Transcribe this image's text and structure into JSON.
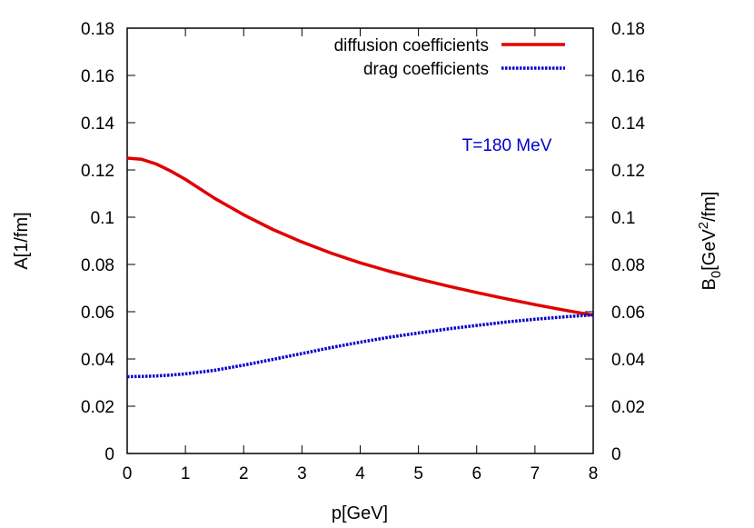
{
  "chart_data": {
    "type": "line",
    "xlabel": "p[GeV]",
    "ylabel": "A[1/fm]",
    "y2label": {
      "base": "B",
      "sub": "0",
      "mid": "[GeV",
      "sup": "2",
      "end": "/fm]"
    },
    "xlim": [
      0,
      8
    ],
    "ylim": [
      0,
      0.18
    ],
    "y2lim": [
      0,
      0.18
    ],
    "xticks": [
      0,
      1,
      2,
      3,
      4,
      5,
      6,
      7,
      8
    ],
    "yticks": [
      0,
      0.02,
      0.04,
      0.06,
      0.08,
      0.1,
      0.12,
      0.14,
      0.16,
      0.18
    ],
    "ytick_labels": [
      "0",
      "0.02",
      "0.04",
      "0.06",
      "0.08",
      "0.1",
      "0.12",
      "0.14",
      "0.16",
      "0.18"
    ],
    "grid": false,
    "legend": "top-right",
    "annotation": {
      "text": "T=180 MeV",
      "color": "#0000cc",
      "x": 7.0,
      "y": 0.129
    },
    "series": [
      {
        "name": "diffusion coefficients",
        "color": "#e00000",
        "style": "solid",
        "x": [
          0,
          0.25,
          0.5,
          0.75,
          1,
          1.5,
          2,
          2.5,
          3,
          3.5,
          4,
          4.5,
          5,
          5.5,
          6,
          6.5,
          7,
          7.5,
          8
        ],
        "y": [
          0.125,
          0.1245,
          0.1225,
          0.1195,
          0.116,
          0.108,
          0.101,
          0.0948,
          0.0895,
          0.0848,
          0.0807,
          0.0771,
          0.0739,
          0.0709,
          0.0681,
          0.0655,
          0.063,
          0.0607,
          0.0585
        ]
      },
      {
        "name": "drag coefficients",
        "color": "#0000cc",
        "style": "dotted",
        "x": [
          0,
          0.25,
          0.5,
          0.75,
          1,
          1.5,
          2,
          2.5,
          3,
          3.5,
          4,
          4.5,
          5,
          5.5,
          6,
          6.5,
          7,
          7.5,
          8
        ],
        "y": [
          0.0325,
          0.0326,
          0.0328,
          0.0332,
          0.0337,
          0.0352,
          0.0374,
          0.0398,
          0.0423,
          0.0448,
          0.0471,
          0.0492,
          0.051,
          0.0527,
          0.0542,
          0.0556,
          0.0568,
          0.0578,
          0.0587
        ]
      }
    ]
  }
}
